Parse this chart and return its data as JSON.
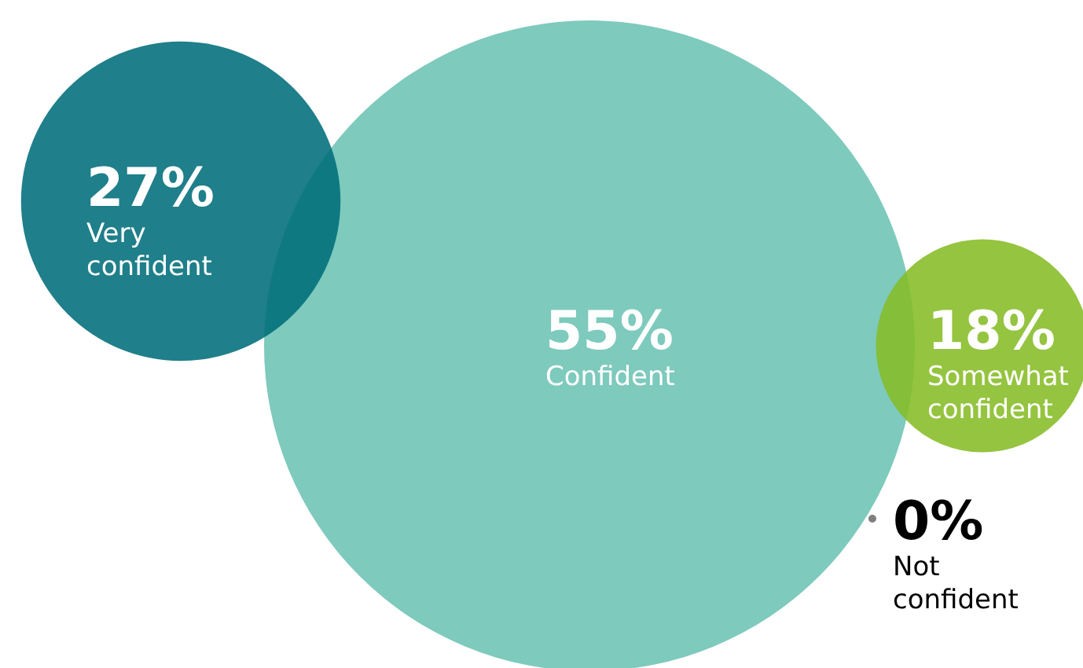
{
  "chart_data": {
    "type": "other",
    "categories": [
      "Very confident",
      "Confident",
      "Somewhat confident",
      "Not confident"
    ],
    "values": [
      27,
      55,
      18,
      0
    ],
    "value_labels": [
      "27%",
      "55%",
      "18%",
      "0%"
    ],
    "colors": [
      "#006d7a",
      "#6cc3b4",
      "#86bc25",
      "#7f7f7f"
    ]
  }
}
